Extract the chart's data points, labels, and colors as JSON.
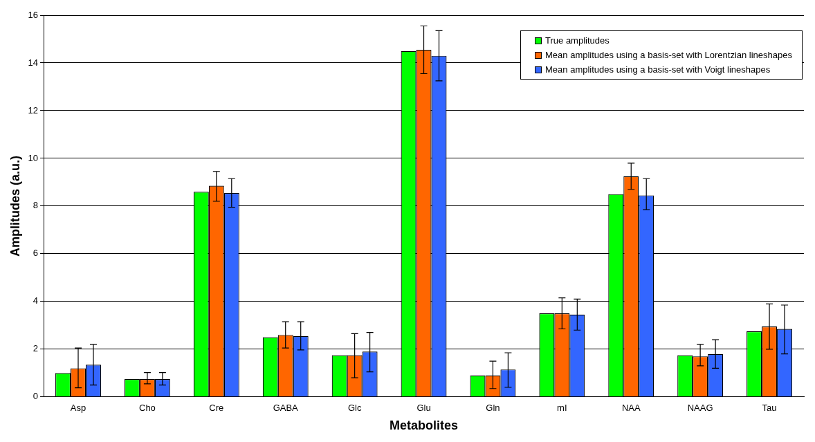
{
  "chart_data": {
    "type": "bar",
    "xlabel": "Metabolites",
    "ylabel": "Amplitudes (a.u.)",
    "categories": [
      "Asp",
      "Cho",
      "Cre",
      "GABA",
      "Glc",
      "Glu",
      "Gln",
      "mI",
      "NAA",
      "NAAG",
      "Tau"
    ],
    "series": [
      {
        "name": "True amplitudes",
        "color": "#00ff00",
        "values": [
          1.0,
          0.75,
          8.6,
          2.5,
          1.75,
          14.5,
          0.9,
          3.5,
          8.5,
          1.75,
          2.75
        ]
      },
      {
        "name": "Mean amplitudes using a basis-set with Lorentzian lineshapes",
        "color": "#ff6600",
        "values": [
          1.2,
          0.75,
          8.85,
          2.6,
          1.75,
          14.55,
          0.9,
          3.5,
          9.25,
          1.7,
          2.95
        ],
        "errors": [
          [
            0.38,
            2.05
          ],
          [
            0.55,
            1.02
          ],
          [
            8.2,
            9.45
          ],
          [
            2.05,
            3.15
          ],
          [
            0.8,
            2.65
          ],
          [
            13.55,
            15.55
          ],
          [
            0.35,
            1.5
          ],
          [
            2.85,
            4.15
          ],
          [
            8.7,
            9.8
          ],
          [
            1.3,
            2.2
          ],
          [
            2.0,
            3.9
          ]
        ]
      },
      {
        "name": "Mean amplitudes using a basis-set with Voigt lineshapes",
        "color": "#3366ff",
        "values": [
          1.35,
          0.75,
          8.55,
          2.55,
          1.9,
          14.3,
          1.15,
          3.45,
          8.45,
          1.8,
          2.85
        ],
        "errors": [
          [
            0.5,
            2.2
          ],
          [
            0.5,
            1.02
          ],
          [
            7.95,
            9.15
          ],
          [
            1.97,
            3.15
          ],
          [
            1.05,
            2.7
          ],
          [
            13.25,
            15.35
          ],
          [
            0.4,
            1.85
          ],
          [
            2.8,
            4.1
          ],
          [
            7.85,
            9.15
          ],
          [
            1.2,
            2.4
          ],
          [
            1.8,
            3.85
          ]
        ]
      }
    ],
    "ylim": [
      0,
      16
    ],
    "yticks": [
      0,
      2,
      4,
      6,
      8,
      10,
      12,
      14,
      16
    ],
    "grid": "y",
    "legend": "top right"
  }
}
